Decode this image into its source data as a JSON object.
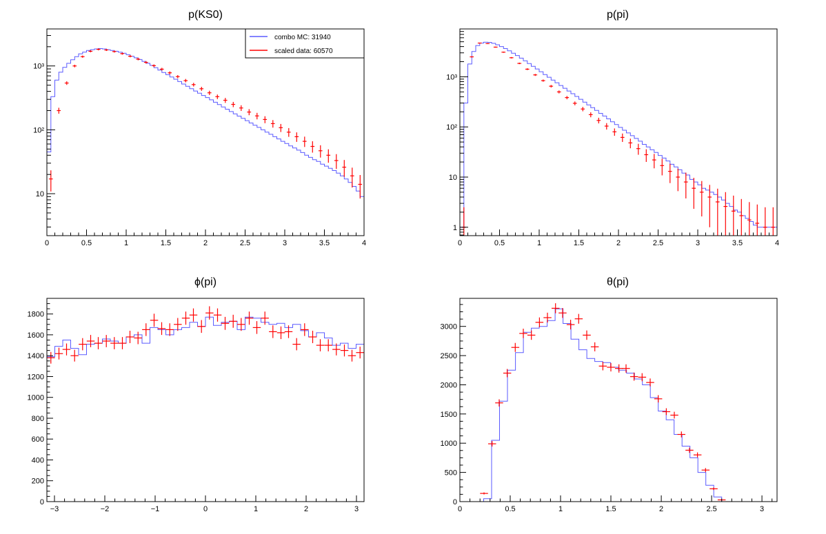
{
  "colors": {
    "mc": "#5a5aff",
    "data": "#ff0000",
    "axis": "#000000"
  },
  "chart_data": [
    {
      "type": "histogram",
      "title": "p(KS0)",
      "xlabel": "",
      "ylabel": "",
      "xlim": [
        0,
        4
      ],
      "ylim": [
        2.2,
        3800
      ],
      "log_y": true,
      "xticks": [
        0,
        0.5,
        1,
        1.5,
        2,
        2.5,
        3,
        3.5,
        4
      ],
      "xtick_labels": [
        "0",
        "0.5",
        "1",
        "1.5",
        "2",
        "2.5",
        "3",
        "3.5",
        "4"
      ],
      "yticks": [
        10,
        100,
        1000
      ],
      "ytick_labels": [
        "10",
        "10²",
        "10³"
      ],
      "legend": {
        "placement": "top-right",
        "entries": [
          {
            "label": "combo MC: 31940",
            "color": "#5a5aff"
          },
          {
            "label": "scaled data: 60570",
            "color": "#ff0000"
          }
        ]
      },
      "bin_width": 0.05,
      "mc_values": [
        45,
        330,
        600,
        800,
        950,
        1100,
        1250,
        1400,
        1550,
        1650,
        1750,
        1800,
        1850,
        1870,
        1850,
        1800,
        1750,
        1700,
        1640,
        1580,
        1500,
        1420,
        1340,
        1260,
        1180,
        1100,
        1020,
        940,
        860,
        790,
        730,
        670,
        620,
        570,
        520,
        480,
        440,
        405,
        375,
        345,
        320,
        295,
        270,
        248,
        228,
        210,
        193,
        178,
        164,
        151,
        139,
        128,
        118,
        109,
        100,
        92,
        85,
        78,
        72,
        66,
        61,
        56,
        52,
        48,
        44,
        40,
        37,
        34,
        32,
        29,
        27,
        25,
        23,
        21,
        19,
        17,
        15,
        13,
        11,
        9,
        4
      ],
      "data_points": {
        "x": [
          0.05,
          0.15,
          0.25,
          0.35,
          0.45,
          0.55,
          0.65,
          0.75,
          0.85,
          0.95,
          1.05,
          1.15,
          1.25,
          1.35,
          1.45,
          1.55,
          1.65,
          1.75,
          1.85,
          1.95,
          2.05,
          2.15,
          2.25,
          2.35,
          2.45,
          2.55,
          2.65,
          2.75,
          2.85,
          2.95,
          3.05,
          3.15,
          3.25,
          3.35,
          3.45,
          3.55,
          3.65,
          3.75,
          3.85,
          3.95
        ],
        "y": [
          17,
          200,
          540,
          1000,
          1400,
          1700,
          1820,
          1780,
          1680,
          1560,
          1420,
          1280,
          1140,
          1010,
          890,
          780,
          680,
          590,
          510,
          440,
          380,
          330,
          290,
          250,
          220,
          190,
          165,
          145,
          125,
          108,
          92,
          78,
          66,
          55,
          47,
          40,
          33,
          26,
          19,
          14
        ]
      }
    },
    {
      "type": "histogram",
      "title": "p(pi)",
      "xlabel": "",
      "ylabel": "",
      "xlim": [
        0,
        4
      ],
      "ylim": [
        0.68,
        9000
      ],
      "log_y": true,
      "xticks": [
        0,
        0.5,
        1,
        1.5,
        2,
        2.5,
        3,
        3.5,
        4
      ],
      "xtick_labels": [
        "0",
        "0.5",
        "1",
        "1.5",
        "2",
        "2.5",
        "3",
        "3.5",
        "4"
      ],
      "yticks": [
        1,
        10,
        100,
        1000
      ],
      "ytick_labels": [
        "1",
        "10",
        "10²",
        "10³"
      ],
      "bin_width": 0.05,
      "mc_values": [
        1,
        300,
        1800,
        3200,
        4200,
        4700,
        4900,
        4850,
        4650,
        4350,
        4000,
        3650,
        3300,
        2950,
        2650,
        2350,
        2080,
        1840,
        1620,
        1430,
        1260,
        1110,
        980,
        860,
        760,
        670,
        590,
        520,
        460,
        405,
        356,
        313,
        275,
        242,
        213,
        187,
        165,
        145,
        127,
        112,
        98,
        86,
        76,
        67,
        59,
        52,
        45,
        40,
        35,
        31,
        27,
        24,
        21,
        18,
        16,
        14,
        12,
        11,
        9,
        8,
        7,
        6,
        5.5,
        5,
        4.5,
        4,
        3.5,
        3,
        2.6,
        2.2,
        2,
        1.7,
        1.5,
        1.3,
        1.1,
        1,
        1,
        1,
        1,
        1
      ],
      "data_points": {
        "x": [
          0.05,
          0.15,
          0.25,
          0.35,
          0.45,
          0.55,
          0.65,
          0.75,
          0.85,
          0.95,
          1.05,
          1.15,
          1.25,
          1.35,
          1.45,
          1.55,
          1.65,
          1.75,
          1.85,
          1.95,
          2.05,
          2.15,
          2.25,
          2.35,
          2.45,
          2.55,
          2.65,
          2.75,
          2.85,
          2.95,
          3.05,
          3.15,
          3.25,
          3.35,
          3.45,
          3.55,
          3.65,
          3.75,
          3.85,
          3.95
        ],
        "y": [
          1,
          2500,
          4700,
          4600,
          3900,
          3100,
          2400,
          1850,
          1420,
          1090,
          840,
          650,
          500,
          385,
          296,
          228,
          176,
          135,
          104,
          80,
          62,
          48,
          37,
          28,
          22,
          17,
          13,
          10,
          8,
          6,
          5,
          4,
          3.2,
          2.6,
          2.1,
          1.7,
          1.4,
          1.2,
          1,
          1
        ]
      }
    },
    {
      "type": "histogram",
      "title": "ϕ(pi)",
      "xlabel": "",
      "ylabel": "",
      "xlim": [
        -3.15,
        3.15
      ],
      "ylim": [
        0,
        1950
      ],
      "log_y": false,
      "xticks": [
        -3,
        -2,
        -1,
        0,
        1,
        2,
        3
      ],
      "xtick_labels": [
        "−3",
        "−2",
        "−1",
        "0",
        "1",
        "2",
        "3"
      ],
      "yticks": [
        0,
        200,
        400,
        600,
        800,
        1000,
        1200,
        1400,
        1600,
        1800
      ],
      "ytick_labels": [
        "0",
        "200",
        "400",
        "600",
        "800",
        "1000",
        "1200",
        "1400",
        "1600",
        "1800"
      ],
      "bin_width": 0.1575,
      "mc_values": [
        1390,
        1490,
        1550,
        1470,
        1410,
        1510,
        1520,
        1560,
        1540,
        1520,
        1580,
        1600,
        1520,
        1670,
        1650,
        1600,
        1650,
        1670,
        1720,
        1680,
        1770,
        1690,
        1720,
        1730,
        1650,
        1770,
        1760,
        1720,
        1700,
        1710,
        1670,
        1700,
        1640,
        1580,
        1620,
        1570,
        1500,
        1520,
        1470,
        1510
      ],
      "data_points": {
        "x": [
          -3.07,
          -2.91,
          -2.76,
          -2.6,
          -2.44,
          -2.28,
          -2.13,
          -1.97,
          -1.81,
          -1.65,
          -1.5,
          -1.34,
          -1.18,
          -1.02,
          -0.87,
          -0.71,
          -0.55,
          -0.39,
          -0.24,
          -0.08,
          0.08,
          0.24,
          0.39,
          0.55,
          0.71,
          0.87,
          1.02,
          1.18,
          1.34,
          1.5,
          1.65,
          1.81,
          1.97,
          2.13,
          2.28,
          2.44,
          2.6,
          2.76,
          2.91,
          3.07
        ],
        "y": [
          1380,
          1420,
          1460,
          1400,
          1510,
          1540,
          1520,
          1540,
          1520,
          1520,
          1580,
          1570,
          1650,
          1740,
          1660,
          1650,
          1700,
          1760,
          1790,
          1680,
          1810,
          1790,
          1710,
          1730,
          1700,
          1760,
          1670,
          1760,
          1630,
          1620,
          1630,
          1510,
          1650,
          1580,
          1500,
          1500,
          1460,
          1450,
          1400,
          1430
        ]
      }
    },
    {
      "type": "histogram",
      "title": "θ(pi)",
      "xlabel": "",
      "ylabel": "",
      "xlim": [
        0,
        3.15
      ],
      "ylim": [
        0,
        3480
      ],
      "log_y": false,
      "xticks": [
        0,
        0.5,
        1,
        1.5,
        2,
        2.5,
        3
      ],
      "xtick_labels": [
        "0",
        "0.5",
        "1",
        "1.5",
        "2",
        "2.5",
        "3"
      ],
      "yticks": [
        0,
        500,
        1000,
        1500,
        2000,
        2500,
        3000
      ],
      "ytick_labels": [
        "0",
        "500",
        "1000",
        "1500",
        "2000",
        "2500",
        "3000"
      ],
      "bin_width": 0.0788,
      "mc_values": [
        0,
        0,
        0,
        50,
        1050,
        1720,
        2250,
        2550,
        2900,
        2970,
        3000,
        3100,
        3300,
        3050,
        2780,
        2600,
        2450,
        2400,
        2380,
        2300,
        2250,
        2200,
        2100,
        2000,
        1780,
        1550,
        1400,
        1150,
        950,
        750,
        500,
        280,
        80,
        0,
        0,
        0,
        0,
        0,
        0,
        0
      ],
      "data_points": {
        "x": [
          0.24,
          0.32,
          0.39,
          0.47,
          0.55,
          0.63,
          0.71,
          0.79,
          0.87,
          0.95,
          1.02,
          1.1,
          1.18,
          1.26,
          1.34,
          1.42,
          1.5,
          1.58,
          1.65,
          1.73,
          1.81,
          1.89,
          1.97,
          2.05,
          2.13,
          2.2,
          2.28,
          2.36,
          2.44,
          2.52,
          2.6,
          2.68
        ],
        "y": [
          140,
          990,
          1690,
          2200,
          2640,
          2880,
          2850,
          3070,
          3150,
          3310,
          3230,
          3030,
          3130,
          2850,
          2650,
          2320,
          2300,
          2280,
          2280,
          2140,
          2130,
          2040,
          1760,
          1540,
          1480,
          1150,
          880,
          800,
          540,
          220,
          30,
          0
        ]
      }
    }
  ]
}
